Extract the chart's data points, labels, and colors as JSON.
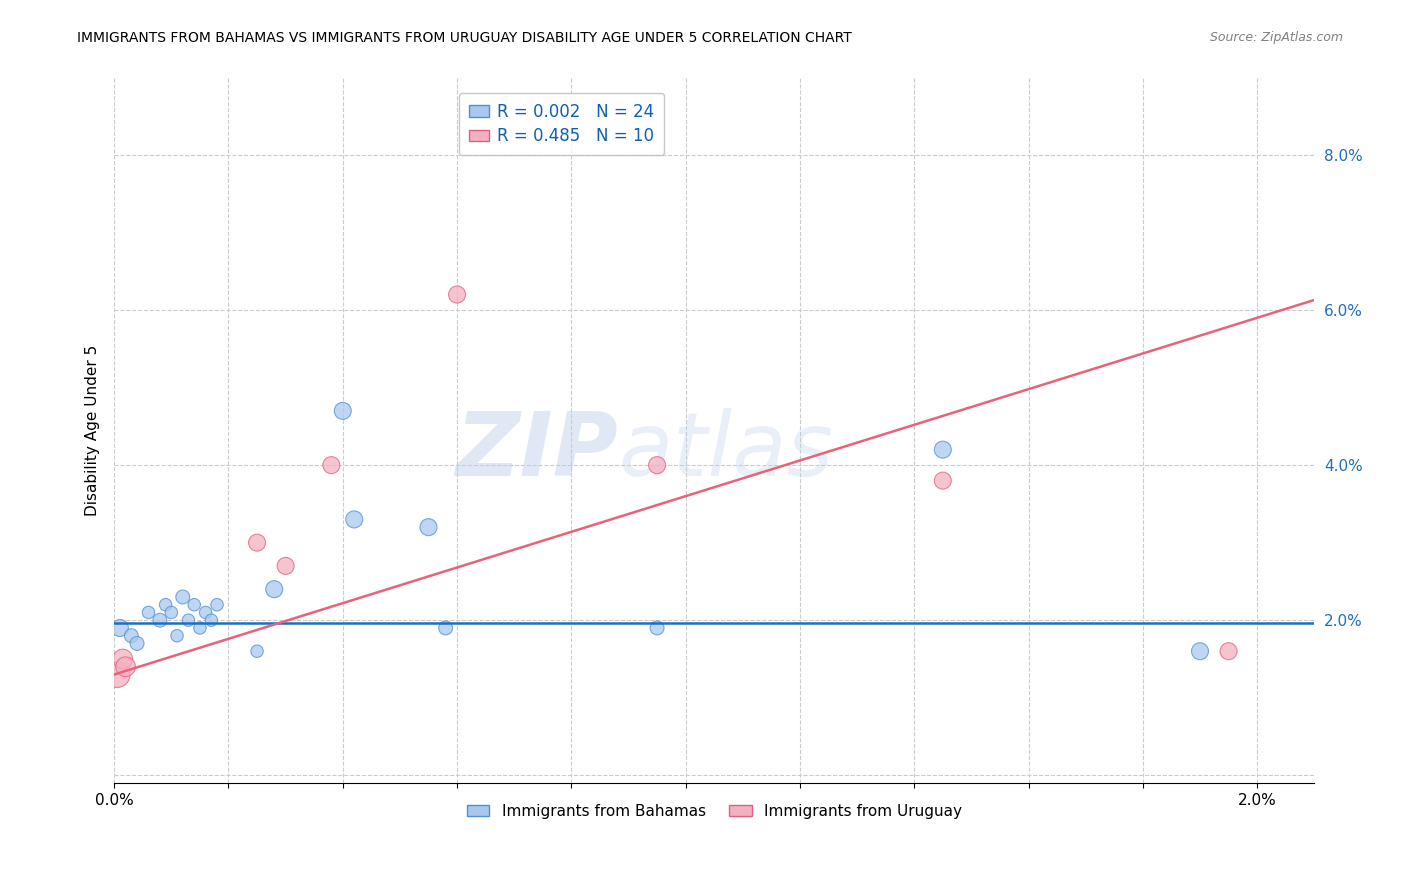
{
  "title": "IMMIGRANTS FROM BAHAMAS VS IMMIGRANTS FROM URUGUAY DISABILITY AGE UNDER 5 CORRELATION CHART",
  "source": "Source: ZipAtlas.com",
  "xlabel": "",
  "ylabel": "Disability Age Under 5",
  "xlim": [
    0.0,
    0.021
  ],
  "ylim": [
    -0.001,
    0.09
  ],
  "xticks": [
    0.0,
    0.002,
    0.004,
    0.006,
    0.008,
    0.01,
    0.012,
    0.014,
    0.016,
    0.018,
    0.02
  ],
  "xtick_labels": [
    "0.0%",
    "",
    "",
    "",
    "",
    "",
    "",
    "",
    "",
    "",
    "2.0%"
  ],
  "ytick_positions": [
    0.0,
    0.02,
    0.04,
    0.06,
    0.08
  ],
  "ytick_labels": [
    "",
    "2.0%",
    "4.0%",
    "6.0%",
    "8.0%"
  ],
  "bahamas_x": [
    0.0001,
    0.0003,
    0.0004,
    0.0006,
    0.0008,
    0.0009,
    0.001,
    0.0011,
    0.0012,
    0.0013,
    0.0014,
    0.0015,
    0.0016,
    0.0017,
    0.0018,
    0.0025,
    0.0028,
    0.004,
    0.0042,
    0.0055,
    0.0058,
    0.0095,
    0.0145,
    0.019
  ],
  "bahamas_y": [
    0.019,
    0.018,
    0.017,
    0.021,
    0.02,
    0.022,
    0.021,
    0.018,
    0.023,
    0.02,
    0.022,
    0.019,
    0.021,
    0.02,
    0.022,
    0.016,
    0.024,
    0.047,
    0.033,
    0.032,
    0.019,
    0.019,
    0.042,
    0.016
  ],
  "bahamas_sizes": [
    150,
    100,
    100,
    80,
    100,
    80,
    80,
    80,
    100,
    80,
    80,
    80,
    80,
    80,
    80,
    80,
    150,
    150,
    150,
    150,
    100,
    100,
    150,
    150
  ],
  "uruguay_x": [
    5e-05,
    0.00015,
    0.0002,
    0.0025,
    0.003,
    0.0038,
    0.006,
    0.0095,
    0.0145,
    0.0195
  ],
  "uruguay_y": [
    0.013,
    0.015,
    0.014,
    0.03,
    0.027,
    0.04,
    0.062,
    0.04,
    0.038,
    0.016
  ],
  "uruguay_sizes": [
    350,
    200,
    200,
    150,
    150,
    150,
    150,
    150,
    150,
    150
  ],
  "bahamas_color": "#A8C8F0",
  "uruguay_color": "#F4B0C0",
  "bahamas_edge_color": "#5090D0",
  "uruguay_edge_color": "#E06080",
  "bahamas_line_color": "#1F6FBF",
  "uruguay_line_color": "#E8637A",
  "grid_color": "#CCCCCC",
  "watermark_zip": "ZIP",
  "watermark_atlas": "atlas",
  "bahamas_reg_intercept": 0.0196,
  "bahamas_reg_slope": 0.0,
  "uruguay_reg_intercept": 0.013,
  "uruguay_reg_slope": 2.3
}
